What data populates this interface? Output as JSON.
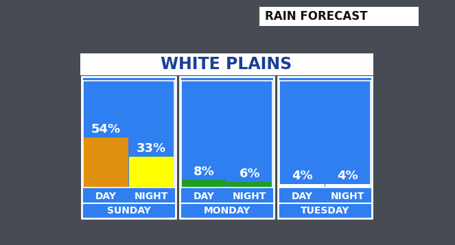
{
  "header": "RAIN FORECAST",
  "title": "WHITE PLAINS",
  "chart_data": [
    {
      "type": "bar",
      "title": "SUNDAY",
      "categories": [
        "DAY",
        "NIGHT"
      ],
      "values": [
        54,
        33
      ],
      "value_labels": [
        "54%",
        "33%"
      ],
      "colors": [
        "#e0900f",
        "#ffff00"
      ],
      "ylim": [
        0,
        115
      ],
      "data_labels": true,
      "tick_labels": "x"
    },
    {
      "type": "bar",
      "title": "MONDAY",
      "categories": [
        "DAY",
        "NIGHT"
      ],
      "values": [
        8,
        6
      ],
      "value_labels": [
        "8%",
        "6%"
      ],
      "colors": [
        "#1f9e1f",
        "#1f9e1f"
      ],
      "ylim": [
        0,
        115
      ],
      "data_labels": true,
      "tick_labels": "x"
    },
    {
      "type": "bar",
      "title": "TUESDAY",
      "categories": [
        "DAY",
        "NIGHT"
      ],
      "values": [
        4,
        4
      ],
      "value_labels": [
        "4%",
        "4%"
      ],
      "colors": [
        "#ffffff",
        "#ffffff"
      ],
      "ylim": [
        0,
        115
      ],
      "data_labels": true,
      "tick_labels": "x"
    }
  ]
}
